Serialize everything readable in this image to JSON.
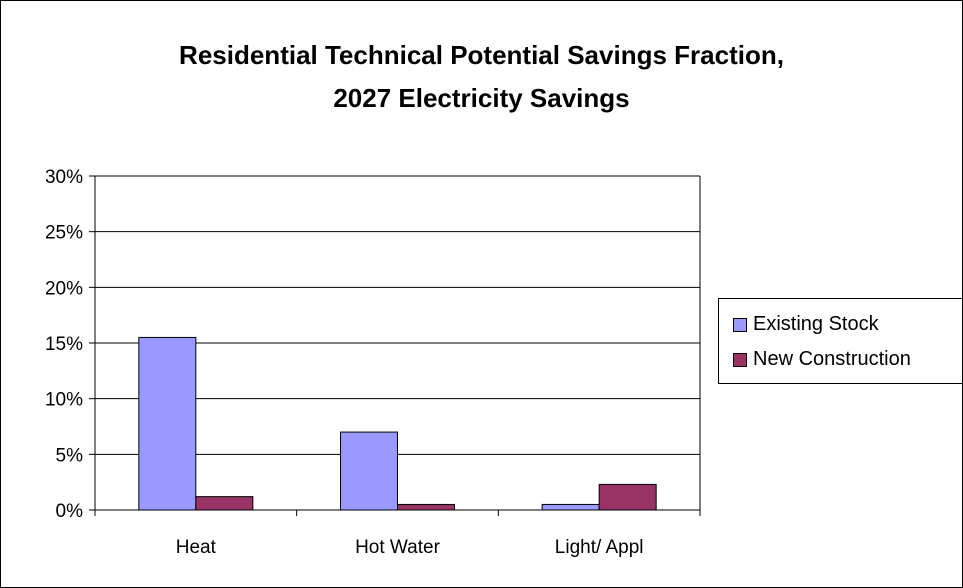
{
  "chart_data": {
    "type": "bar",
    "title_line1": "Residential Technical Potential Savings Fraction,",
    "title_line2": "2027 Electricity Savings",
    "categories": [
      "Heat",
      "Hot Water",
      "Light/ Appl"
    ],
    "series": [
      {
        "name": "Existing Stock",
        "values": [
          15.5,
          7.0,
          0.5
        ],
        "color": "#9999ff"
      },
      {
        "name": "New Construction",
        "values": [
          1.2,
          0.5,
          2.3
        ],
        "color": "#993366"
      }
    ],
    "ylim": [
      0,
      30
    ],
    "yticks": [
      "0%",
      "5%",
      "10%",
      "15%",
      "20%",
      "25%",
      "30%"
    ],
    "grid": true,
    "legend_position": "right"
  }
}
